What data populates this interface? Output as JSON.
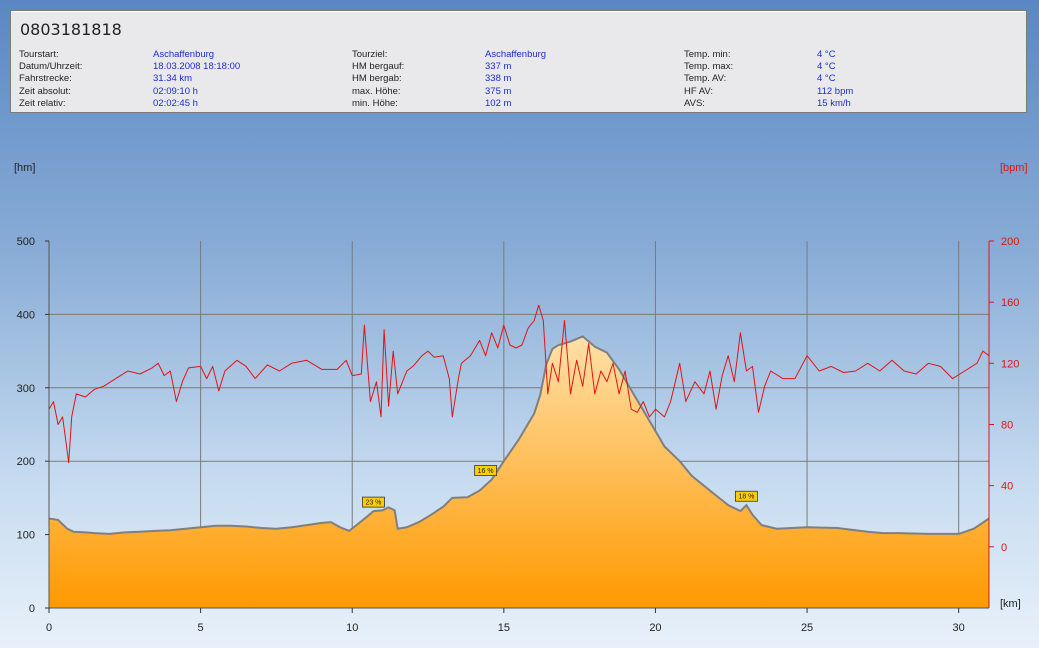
{
  "header": {
    "tour_id": "0803181818",
    "columns": [
      [
        {
          "label": "Tourstart:",
          "value": "Aschaffenburg"
        },
        {
          "label": "Datum/Uhrzeit:",
          "value": "18.03.2008 18:18:00"
        },
        {
          "label": "Fahrstrecke:",
          "value": "31.34 km"
        },
        {
          "label": "Zeit absolut:",
          "value": "02:09:10 h"
        },
        {
          "label": "Zeit relativ:",
          "value": "02:02:45 h"
        }
      ],
      [
        {
          "label": "Tourziel:",
          "value": "Aschaffenburg"
        },
        {
          "label": "HM bergauf:",
          "value": "337 m"
        },
        {
          "label": "HM bergab:",
          "value": "338 m"
        },
        {
          "label": "max. Höhe:",
          "value": "375 m"
        },
        {
          "label": "min. Höhe:",
          "value": "102 m"
        }
      ],
      [
        {
          "label": "Temp. min:",
          "value": "4 °C"
        },
        {
          "label": "Temp. max:",
          "value": "4 °C"
        },
        {
          "label": "Temp. AV:",
          "value": "4 °C"
        },
        {
          "label": "HF AV:",
          "value": "112 bpm"
        },
        {
          "label": "AVS:",
          "value": "15 km/h"
        }
      ]
    ]
  },
  "chart_data": {
    "type": "area",
    "ylabel": "[hm]",
    "y2label": "[bpm]",
    "xlabel": "[km]",
    "xlim": [
      0,
      31
    ],
    "ylim": [
      0,
      500
    ],
    "y2lim": [
      -40,
      200
    ],
    "x_ticks": [
      0,
      5,
      10,
      15,
      20,
      25,
      30
    ],
    "y_ticks": [
      0,
      100,
      200,
      300,
      400,
      500
    ],
    "y2_ticks": [
      0,
      40,
      80,
      120,
      160,
      200
    ],
    "grid": true,
    "colors": {
      "altitude_fill_top": "#ffe0a8",
      "altitude_fill_bottom": "#ff9900",
      "altitude_line": "#7f7f7f",
      "heart_rate": "#e11414",
      "grid": "#7a7a7a",
      "badge": "#ffcc00",
      "y2_axis": "#e11414"
    },
    "altitude": [
      [
        0,
        122
      ],
      [
        0.3,
        120
      ],
      [
        0.6,
        108
      ],
      [
        0.8,
        104
      ],
      [
        1.2,
        103
      ],
      [
        1.5,
        102
      ],
      [
        2,
        101
      ],
      [
        2.5,
        103
      ],
      [
        3,
        104
      ],
      [
        3.5,
        105
      ],
      [
        4,
        106
      ],
      [
        4.5,
        108
      ],
      [
        5,
        110
      ],
      [
        5.5,
        112
      ],
      [
        6,
        112
      ],
      [
        6.5,
        111
      ],
      [
        7,
        109
      ],
      [
        7.5,
        108
      ],
      [
        8,
        110
      ],
      [
        8.5,
        113
      ],
      [
        9,
        116
      ],
      [
        9.3,
        117
      ],
      [
        9.6,
        110
      ],
      [
        9.9,
        105
      ],
      [
        10.2,
        115
      ],
      [
        10.5,
        125
      ],
      [
        10.7,
        132
      ],
      [
        11,
        133
      ],
      [
        11.2,
        137
      ],
      [
        11.4,
        133
      ],
      [
        11.5,
        108
      ],
      [
        11.8,
        110
      ],
      [
        12.2,
        117
      ],
      [
        12.6,
        127
      ],
      [
        13,
        138
      ],
      [
        13.3,
        150
      ],
      [
        13.8,
        151
      ],
      [
        14.2,
        160
      ],
      [
        14.6,
        175
      ],
      [
        15,
        200
      ],
      [
        15.5,
        230
      ],
      [
        16,
        265
      ],
      [
        16.2,
        290
      ],
      [
        16.4,
        332
      ],
      [
        16.6,
        353
      ],
      [
        16.8,
        358
      ],
      [
        17.2,
        363
      ],
      [
        17.6,
        370
      ],
      [
        18,
        356
      ],
      [
        18.4,
        348
      ],
      [
        18.8,
        325
      ],
      [
        19.3,
        290
      ],
      [
        19.8,
        255
      ],
      [
        20.3,
        220
      ],
      [
        20.8,
        200
      ],
      [
        21.2,
        180
      ],
      [
        21.8,
        160
      ],
      [
        22.4,
        140
      ],
      [
        22.8,
        132
      ],
      [
        23,
        140
      ],
      [
        23.2,
        127
      ],
      [
        23.5,
        113
      ],
      [
        24,
        108
      ],
      [
        25,
        110
      ],
      [
        26,
        109
      ],
      [
        27,
        104
      ],
      [
        27.5,
        102
      ],
      [
        28,
        102
      ],
      [
        29,
        101
      ],
      [
        30,
        101
      ],
      [
        30.5,
        108
      ],
      [
        31,
        122
      ]
    ],
    "heart_rate": [
      [
        0,
        90
      ],
      [
        0.15,
        95
      ],
      [
        0.3,
        80
      ],
      [
        0.45,
        85
      ],
      [
        0.55,
        70
      ],
      [
        0.65,
        55
      ],
      [
        0.75,
        85
      ],
      [
        0.9,
        100
      ],
      [
        1.2,
        98
      ],
      [
        1.5,
        103
      ],
      [
        1.8,
        105
      ],
      [
        2.2,
        110
      ],
      [
        2.6,
        115
      ],
      [
        3,
        113
      ],
      [
        3.4,
        117
      ],
      [
        3.6,
        120
      ],
      [
        3.8,
        112
      ],
      [
        4,
        115
      ],
      [
        4.2,
        95
      ],
      [
        4.4,
        108
      ],
      [
        4.6,
        117
      ],
      [
        5,
        118
      ],
      [
        5.2,
        110
      ],
      [
        5.4,
        118
      ],
      [
        5.6,
        102
      ],
      [
        5.8,
        115
      ],
      [
        6.2,
        122
      ],
      [
        6.5,
        118
      ],
      [
        6.8,
        110
      ],
      [
        7.2,
        119
      ],
      [
        7.6,
        115
      ],
      [
        8,
        120
      ],
      [
        8.5,
        122
      ],
      [
        9,
        116
      ],
      [
        9.5,
        116
      ],
      [
        9.8,
        122
      ],
      [
        10,
        112
      ],
      [
        10.3,
        113
      ],
      [
        10.4,
        145
      ],
      [
        10.6,
        95
      ],
      [
        10.8,
        108
      ],
      [
        10.95,
        85
      ],
      [
        11.05,
        142
      ],
      [
        11.2,
        92
      ],
      [
        11.35,
        128
      ],
      [
        11.5,
        100
      ],
      [
        11.8,
        115
      ],
      [
        12,
        118
      ],
      [
        12.3,
        125
      ],
      [
        12.5,
        128
      ],
      [
        12.7,
        124
      ],
      [
        13,
        125
      ],
      [
        13.2,
        110
      ],
      [
        13.3,
        85
      ],
      [
        13.5,
        110
      ],
      [
        13.6,
        120
      ],
      [
        13.9,
        125
      ],
      [
        14.2,
        135
      ],
      [
        14.4,
        125
      ],
      [
        14.6,
        140
      ],
      [
        14.8,
        130
      ],
      [
        15,
        145
      ],
      [
        15.2,
        132
      ],
      [
        15.4,
        130
      ],
      [
        15.6,
        132
      ],
      [
        15.8,
        143
      ],
      [
        16,
        148
      ],
      [
        16.15,
        158
      ],
      [
        16.3,
        148
      ],
      [
        16.45,
        100
      ],
      [
        16.6,
        120
      ],
      [
        16.8,
        108
      ],
      [
        17,
        148
      ],
      [
        17.2,
        100
      ],
      [
        17.4,
        122
      ],
      [
        17.6,
        105
      ],
      [
        17.8,
        133
      ],
      [
        18,
        100
      ],
      [
        18.2,
        115
      ],
      [
        18.4,
        108
      ],
      [
        18.6,
        120
      ],
      [
        18.8,
        100
      ],
      [
        19,
        115
      ],
      [
        19.2,
        90
      ],
      [
        19.4,
        88
      ],
      [
        19.6,
        95
      ],
      [
        19.8,
        85
      ],
      [
        20,
        90
      ],
      [
        20.3,
        85
      ],
      [
        20.5,
        95
      ],
      [
        20.8,
        120
      ],
      [
        21,
        95
      ],
      [
        21.3,
        108
      ],
      [
        21.6,
        100
      ],
      [
        21.8,
        115
      ],
      [
        22,
        90
      ],
      [
        22.2,
        112
      ],
      [
        22.4,
        125
      ],
      [
        22.6,
        108
      ],
      [
        22.8,
        140
      ],
      [
        23,
        115
      ],
      [
        23.2,
        118
      ],
      [
        23.4,
        88
      ],
      [
        23.6,
        105
      ],
      [
        23.8,
        115
      ],
      [
        24.2,
        110
      ],
      [
        24.6,
        110
      ],
      [
        25,
        125
      ],
      [
        25.4,
        115
      ],
      [
        25.8,
        118
      ],
      [
        26.2,
        114
      ],
      [
        26.6,
        115
      ],
      [
        27,
        120
      ],
      [
        27.4,
        115
      ],
      [
        27.8,
        122
      ],
      [
        28.2,
        115
      ],
      [
        28.6,
        113
      ],
      [
        29,
        120
      ],
      [
        29.4,
        118
      ],
      [
        29.8,
        110
      ],
      [
        30.2,
        115
      ],
      [
        30.6,
        120
      ],
      [
        30.8,
        128
      ],
      [
        31,
        125
      ]
    ],
    "annotations": [
      {
        "label": "23 %",
        "x": 10.7,
        "y": 132
      },
      {
        "label": "16 %",
        "x": 14.4,
        "y": 175
      },
      {
        "label": "18 %",
        "x": 23.0,
        "y": 140
      }
    ]
  }
}
